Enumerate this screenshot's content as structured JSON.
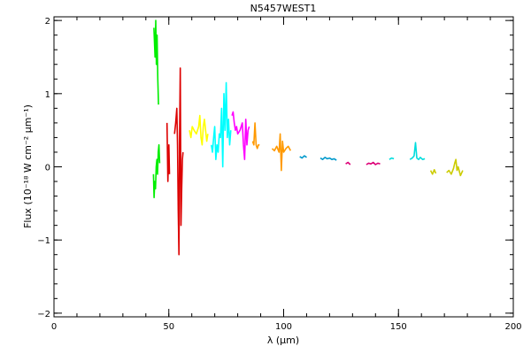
{
  "chart_data": {
    "type": "line",
    "title": "N5457WEST1",
    "xlabel": "λ (μm)",
    "ylabel": "Flux (10⁻¹⁸ W cm⁻² μm⁻¹)",
    "xlim": [
      0,
      200
    ],
    "ylim": [
      -2.05,
      2.05
    ],
    "x_major_ticks": [
      0,
      50,
      100,
      150,
      200
    ],
    "x_tick_labels": [
      "0",
      "50",
      "100",
      "150",
      "200"
    ],
    "x_minor_step": 10,
    "y_major_ticks": [
      -2,
      -1,
      0,
      1,
      2
    ],
    "y_tick_labels": [
      "−2",
      "−1",
      "0",
      "1",
      "2"
    ],
    "y_minor_step": 0.2,
    "grid": false,
    "legend": "none",
    "series": [
      {
        "color": "#00ee00",
        "x": [
          43.5,
          44.0,
          44.3,
          44.6,
          44.9,
          45.2,
          45.5
        ],
        "y": [
          1.9,
          1.5,
          2.0,
          1.4,
          1.8,
          1.2,
          0.85
        ]
      },
      {
        "color": "#00ee00",
        "x": [
          43.3,
          43.6,
          43.9,
          44.2,
          44.5,
          44.8,
          45.1,
          45.4,
          45.7,
          46.0
        ],
        "y": [
          -0.1,
          -0.42,
          -0.2,
          -0.3,
          0.0,
          0.1,
          -0.1,
          0.2,
          0.3,
          0.05
        ]
      },
      {
        "color": "#dd0000",
        "x": [
          49.2,
          49.6,
          50.0,
          50.3
        ],
        "y": [
          0.6,
          -0.2,
          0.3,
          -0.1
        ]
      },
      {
        "color": "#dd0000",
        "x": [
          52.5,
          53.0,
          53.5,
          53.8,
          54.1,
          54.4,
          54.7,
          55.0,
          55.3,
          55.6,
          55.9,
          56.2
        ],
        "y": [
          0.45,
          0.6,
          0.8,
          0.3,
          -0.6,
          -1.2,
          0.4,
          1.35,
          -0.8,
          -0.3,
          0.1,
          0.2
        ]
      },
      {
        "color": "#ffff00",
        "x": [
          59.0,
          59.6,
          60.2,
          61.0,
          62.0,
          63.0,
          63.5,
          64.0,
          64.5,
          65.0,
          65.5,
          66.0,
          66.5,
          67.0
        ],
        "y": [
          0.5,
          0.4,
          0.55,
          0.5,
          0.45,
          0.55,
          0.7,
          0.4,
          0.3,
          0.55,
          0.65,
          0.5,
          0.35,
          0.45
        ]
      },
      {
        "color": "#00ffff",
        "x": [
          68.5,
          69.0,
          69.5,
          70.0,
          70.5,
          71.0,
          71.5,
          72.0,
          72.5,
          73.0,
          73.5,
          74.0,
          74.5,
          75.0,
          75.5,
          76.0,
          76.5,
          77.0
        ],
        "y": [
          0.3,
          0.2,
          0.4,
          0.55,
          0.1,
          0.3,
          0.2,
          0.45,
          0.4,
          0.8,
          0.0,
          1.0,
          0.5,
          1.15,
          0.4,
          0.65,
          0.3,
          0.5
        ]
      },
      {
        "color": "#ff00ff",
        "x": [
          77.5,
          78.0,
          78.5,
          79.0,
          79.5,
          80.0,
          81.0,
          82.0,
          82.5,
          83.0,
          83.5,
          84.0,
          84.5,
          85.0
        ],
        "y": [
          0.7,
          0.75,
          0.6,
          0.5,
          0.55,
          0.45,
          0.5,
          0.6,
          0.3,
          0.1,
          0.65,
          0.3,
          0.5,
          0.55
        ]
      },
      {
        "color": "#ff9900",
        "x": [
          86.5,
          87.0,
          87.5,
          88.0,
          88.5,
          89.0,
          89.5
        ],
        "y": [
          0.35,
          0.3,
          0.6,
          0.3,
          0.25,
          0.3,
          0.3
        ]
      },
      {
        "color": "#ff9900",
        "x": [
          95.0,
          96.0,
          97.0,
          98.0,
          98.5,
          99.0,
          99.5,
          100.0,
          101.0,
          102.0,
          103.0
        ],
        "y": [
          0.25,
          0.22,
          0.28,
          0.2,
          0.45,
          -0.05,
          0.35,
          0.2,
          0.25,
          0.28,
          0.22
        ]
      },
      {
        "color": "#0099cc",
        "x": [
          107.0,
          108.0,
          109.0,
          110.0
        ],
        "y": [
          0.14,
          0.12,
          0.15,
          0.13
        ]
      },
      {
        "color": "#0099cc",
        "x": [
          116.0,
          117.0,
          118.0,
          119.0,
          120.0,
          121.0,
          122.0,
          123.0
        ],
        "y": [
          0.12,
          0.1,
          0.13,
          0.11,
          0.12,
          0.1,
          0.11,
          0.09
        ]
      },
      {
        "color": "#dd0077",
        "x": [
          127.0,
          128.0,
          129.0
        ],
        "y": [
          0.04,
          0.06,
          0.03
        ]
      },
      {
        "color": "#dd0077",
        "x": [
          136.0,
          137.0,
          138.0,
          139.0,
          140.0,
          141.0,
          142.0
        ],
        "y": [
          0.03,
          0.05,
          0.04,
          0.06,
          0.03,
          0.05,
          0.04
        ]
      },
      {
        "color": "#00dddd",
        "x": [
          146.0,
          147.0,
          148.0
        ],
        "y": [
          0.1,
          0.12,
          0.11
        ]
      },
      {
        "color": "#00dddd",
        "x": [
          155.0,
          156.0,
          156.8,
          157.4,
          158.0,
          158.8,
          159.5,
          160.5,
          161.5
        ],
        "y": [
          0.1,
          0.12,
          0.15,
          0.33,
          0.12,
          0.1,
          0.13,
          0.1,
          0.11
        ]
      },
      {
        "color": "#cccc00",
        "x": [
          164.0,
          164.8,
          165.6,
          166.3
        ],
        "y": [
          -0.05,
          -0.1,
          -0.04,
          -0.09
        ]
      },
      {
        "color": "#cccc00",
        "x": [
          171.0,
          172.0,
          173.0,
          174.0,
          174.5,
          175.0,
          175.5,
          176.0,
          177.0,
          178.0
        ],
        "y": [
          -0.08,
          -0.05,
          -0.1,
          -0.02,
          0.05,
          0.1,
          -0.05,
          0.0,
          -0.12,
          -0.05
        ]
      }
    ]
  }
}
